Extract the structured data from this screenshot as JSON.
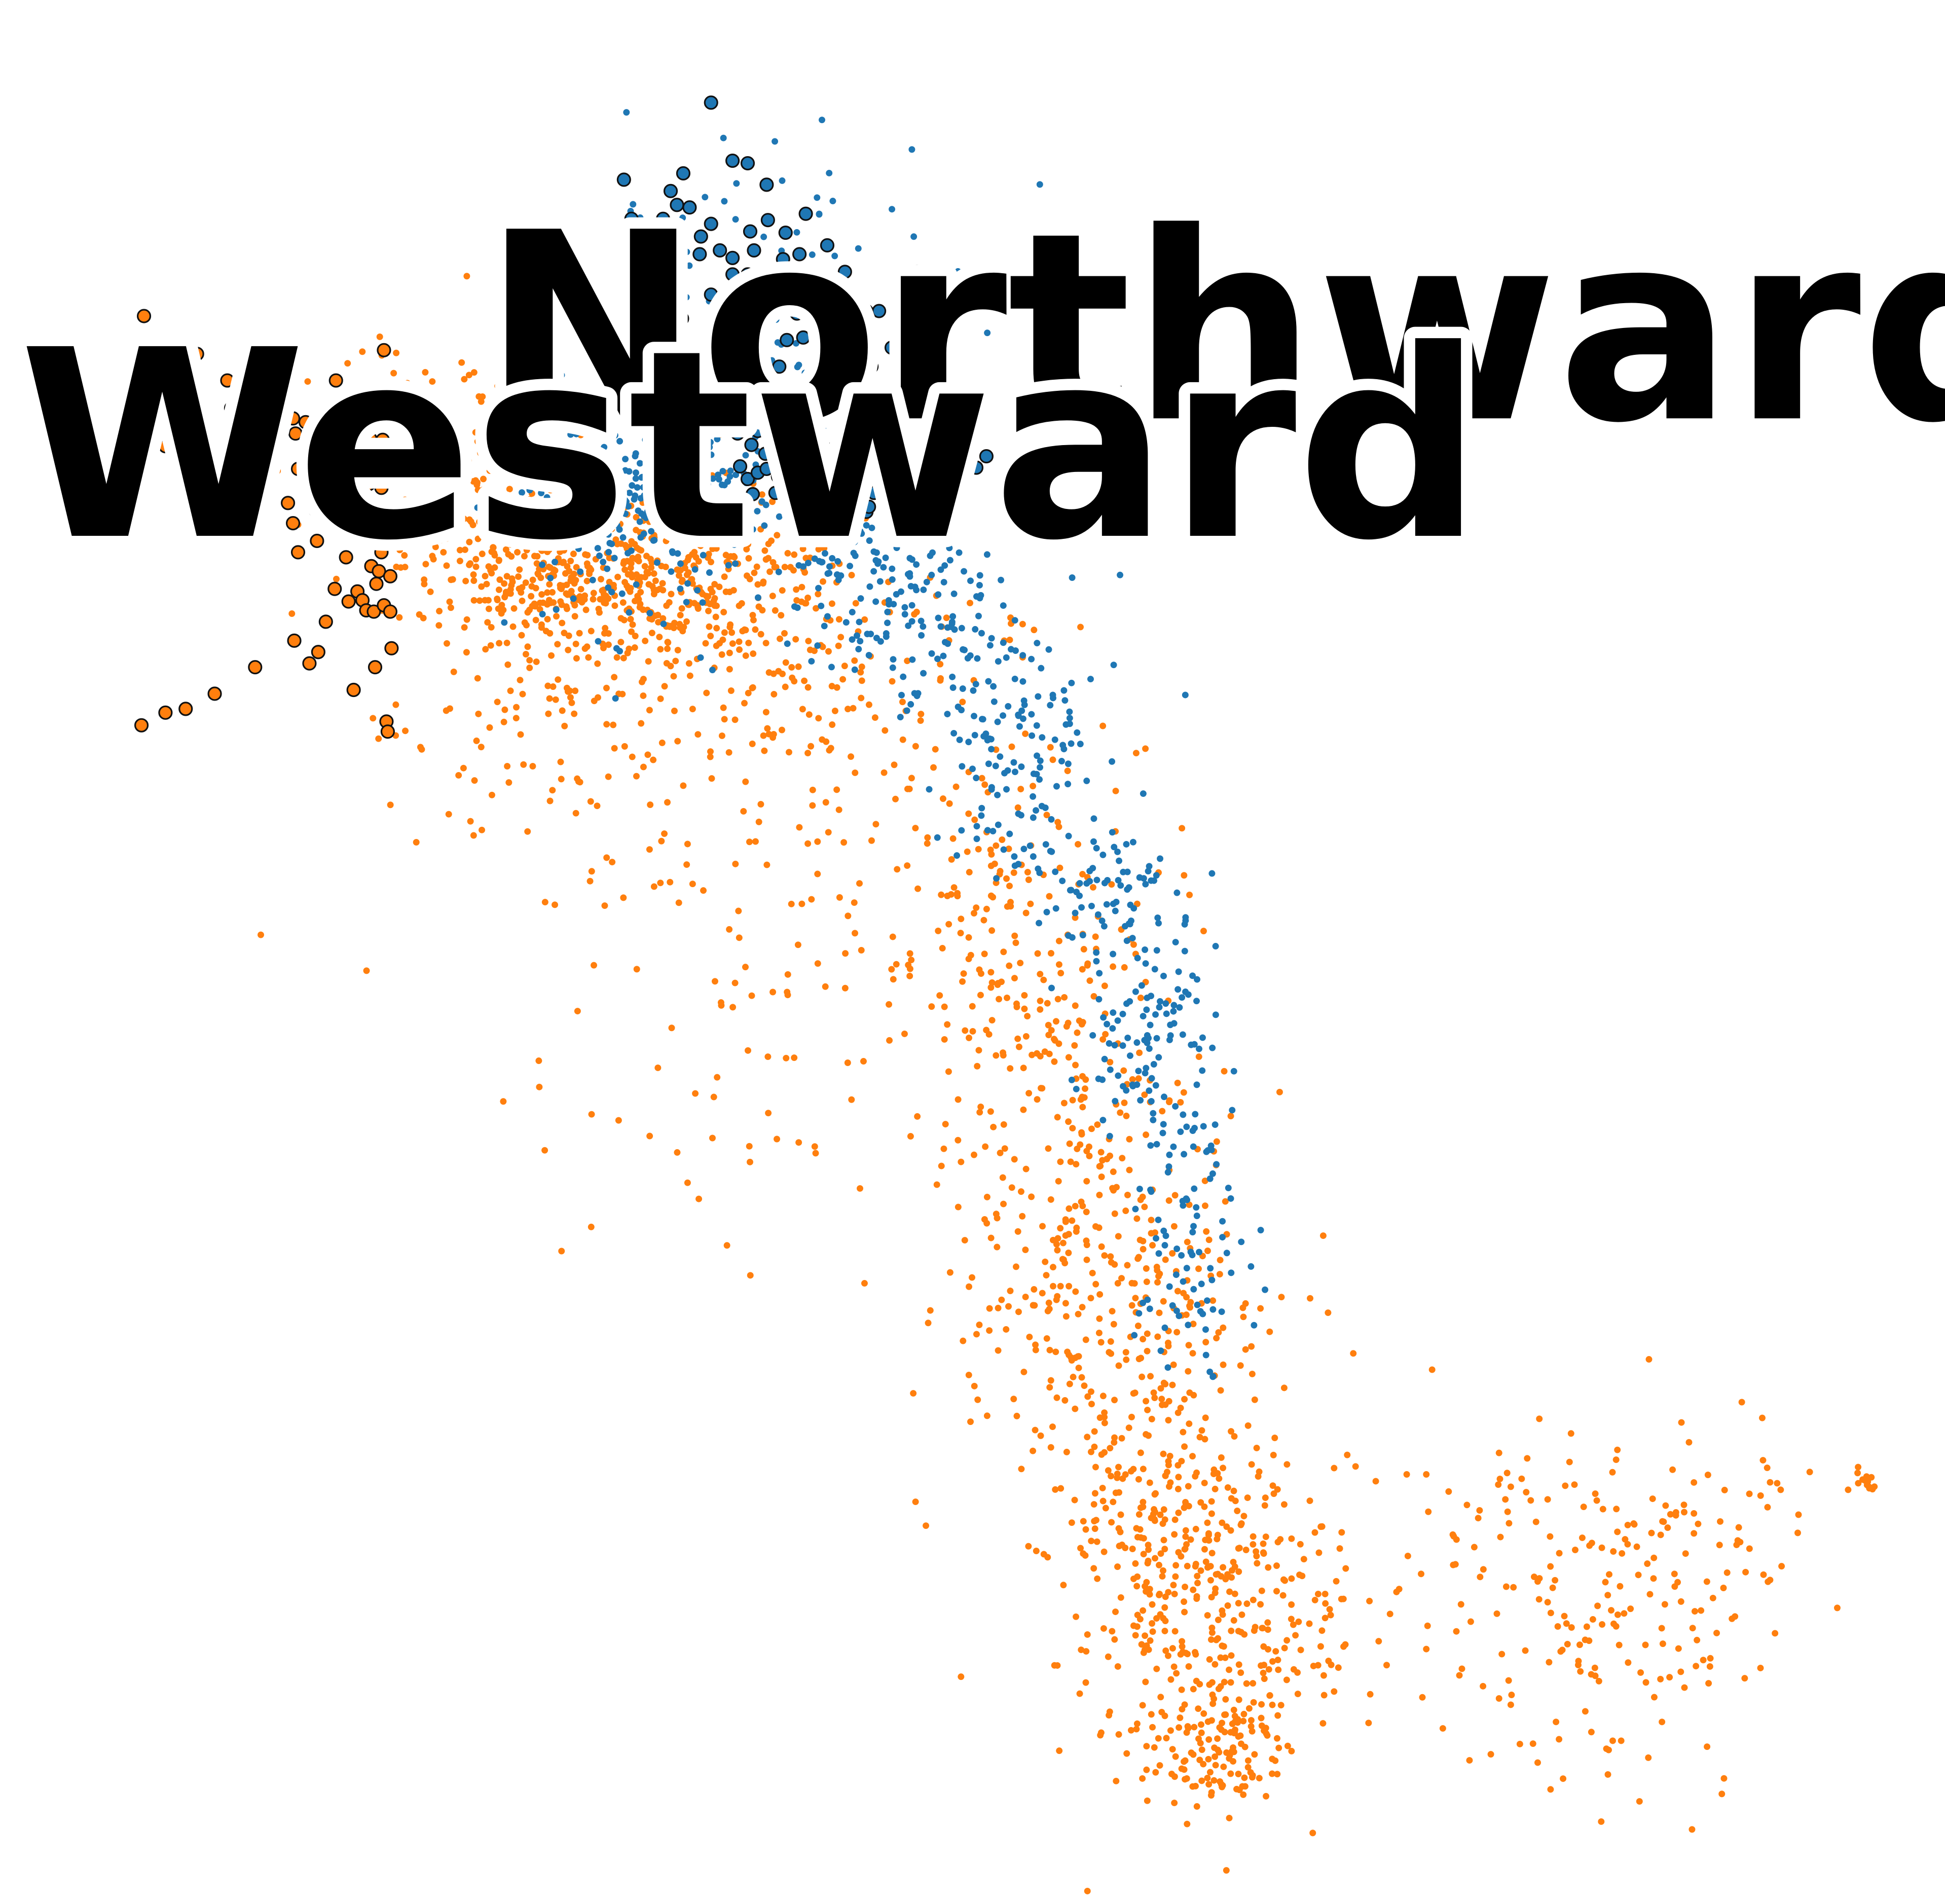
{
  "chart_data": {
    "type": "scatter",
    "title": "",
    "xlabel": "",
    "ylabel": "",
    "axes_visible": false,
    "grid": false,
    "legend": "none",
    "xlim": [
      0,
      1540
    ],
    "ylim": [
      0,
      1505
    ],
    "y_direction": "down",
    "labels": [
      {
        "text": "Northward",
        "color": "#000000",
        "series": "Northward"
      },
      {
        "text": "Westward",
        "color": "#000000",
        "series": "Westward"
      }
    ],
    "series": [
      {
        "name": "Northward",
        "color": "#1f77b4",
        "clouds": [
          {
            "cx": 510,
            "cy": 370,
            "sx": 55,
            "sy": 55,
            "n": 320
          },
          {
            "cx": 600,
            "cy": 300,
            "sx": 70,
            "sy": 90,
            "n": 160
          },
          {
            "cx": 680,
            "cy": 450,
            "sx": 35,
            "sy": 30,
            "n": 70
          },
          {
            "cx": 740,
            "cy": 490,
            "sx": 40,
            "sy": 45,
            "n": 110
          },
          {
            "cx": 810,
            "cy": 590,
            "sx": 30,
            "sy": 45,
            "n": 100
          },
          {
            "cx": 870,
            "cy": 700,
            "sx": 35,
            "sy": 40,
            "n": 90
          },
          {
            "cx": 905,
            "cy": 800,
            "sx": 25,
            "sy": 45,
            "n": 70
          },
          {
            "cx": 930,
            "cy": 880,
            "sx": 25,
            "sy": 45,
            "n": 60
          },
          {
            "cx": 945,
            "cy": 1000,
            "sx": 22,
            "sy": 40,
            "n": 60
          }
        ],
        "highlighted": [
          [
            563,
            80
          ],
          [
            580,
            126
          ],
          [
            592,
            128
          ],
          [
            607,
            145
          ],
          [
            494,
            141
          ],
          [
            541,
            136
          ],
          [
            531,
            150
          ],
          [
            536,
            161
          ],
          [
            546,
            163
          ],
          [
            500,
            172
          ],
          [
            525,
            172
          ],
          [
            563,
            176
          ],
          [
            594,
            182
          ],
          [
            608,
            173
          ],
          [
            622,
            183
          ],
          [
            638,
            168
          ],
          [
            555,
            186
          ],
          [
            570,
            197
          ],
          [
            580,
            203
          ],
          [
            597,
            197
          ],
          [
            620,
            204
          ],
          [
            633,
            200
          ],
          [
            655,
            193
          ],
          [
            528,
            206
          ],
          [
            554,
            200
          ],
          [
            580,
            216
          ],
          [
            592,
            216
          ],
          [
            608,
            218
          ],
          [
            622,
            213
          ],
          [
            635,
            218
          ],
          [
            669,
            214
          ],
          [
            726,
            214
          ],
          [
            510,
            221
          ],
          [
            563,
            232
          ],
          [
            584,
            235
          ],
          [
            600,
            231
          ],
          [
            614,
            241
          ],
          [
            640,
            233
          ],
          [
            650,
            228
          ],
          [
            671,
            241
          ],
          [
            519,
            242
          ],
          [
            540,
            251
          ],
          [
            566,
            262
          ],
          [
            576,
            269
          ],
          [
            606,
            257
          ],
          [
            631,
            247
          ],
          [
            640,
            248
          ],
          [
            657,
            260
          ],
          [
            686,
            245
          ],
          [
            696,
            245
          ],
          [
            714,
            262
          ],
          [
            532,
            276
          ],
          [
            550,
            289
          ],
          [
            568,
            284
          ],
          [
            586,
            291
          ],
          [
            623,
            268
          ],
          [
            636,
            266
          ],
          [
            660,
            268
          ],
          [
            706,
            274
          ],
          [
            544,
            303
          ],
          [
            567,
            297
          ],
          [
            600,
            304
          ],
          [
            617,
            289
          ],
          [
            640,
            300
          ],
          [
            668,
            299
          ],
          [
            690,
            289
          ],
          [
            714,
            291
          ],
          [
            559,
            313
          ],
          [
            590,
            319
          ],
          [
            608,
            313
          ],
          [
            634,
            327
          ],
          [
            657,
            313
          ],
          [
            680,
            322
          ],
          [
            704,
            313
          ],
          [
            577,
            334
          ],
          [
            584,
            342
          ],
          [
            595,
            351
          ],
          [
            600,
            340
          ],
          [
            606,
            358
          ],
          [
            615,
            355
          ],
          [
            624,
            362
          ],
          [
            637,
            341
          ],
          [
            644,
            349
          ],
          [
            650,
            357
          ],
          [
            660,
            354
          ],
          [
            675,
            346
          ],
          [
            706,
            341
          ],
          [
            718,
            353
          ],
          [
            733,
            358
          ],
          [
            740,
            358
          ],
          [
            773,
            369
          ],
          [
            781,
            360
          ],
          [
            586,
            368
          ],
          [
            592,
            378
          ],
          [
            600,
            373
          ],
          [
            607,
            370
          ],
          [
            616,
            376
          ],
          [
            625,
            365
          ],
          [
            633,
            378
          ],
          [
            641,
            383
          ],
          [
            651,
            371
          ],
          [
            656,
            382
          ],
          [
            667,
            374
          ],
          [
            675,
            368
          ],
          [
            683,
            379
          ],
          [
            692,
            389
          ],
          [
            718,
            384
          ],
          [
            596,
            390
          ],
          [
            614,
            389
          ],
          [
            629,
            394
          ],
          [
            637,
            399
          ],
          [
            644,
            407
          ],
          [
            651,
            403
          ],
          [
            659,
            402
          ],
          [
            668,
            408
          ],
          [
            676,
            403
          ],
          [
            686,
            404
          ],
          [
            688,
            400
          ],
          [
            652,
            388
          ],
          [
            637,
            374
          ]
        ]
      },
      {
        "name": "Westward",
        "color": "#ff7f0e",
        "clouds": [
          {
            "cx": 440,
            "cy": 450,
            "sx": 60,
            "sy": 30,
            "n": 380
          },
          {
            "cx": 560,
            "cy": 460,
            "sx": 60,
            "sy": 35,
            "n": 250
          },
          {
            "cx": 380,
            "cy": 360,
            "sx": 55,
            "sy": 50,
            "n": 120
          },
          {
            "cx": 430,
            "cy": 560,
            "sx": 60,
            "sy": 55,
            "n": 120
          },
          {
            "cx": 650,
            "cy": 540,
            "sx": 70,
            "sy": 50,
            "n": 110
          },
          {
            "cx": 620,
            "cy": 720,
            "sx": 110,
            "sy": 120,
            "n": 150
          },
          {
            "cx": 800,
            "cy": 720,
            "sx": 50,
            "sy": 90,
            "n": 160
          },
          {
            "cx": 850,
            "cy": 900,
            "sx": 55,
            "sy": 90,
            "n": 210
          },
          {
            "cx": 880,
            "cy": 1060,
            "sx": 60,
            "sy": 80,
            "n": 240
          },
          {
            "cx": 930,
            "cy": 1200,
            "sx": 50,
            "sy": 60,
            "n": 200
          },
          {
            "cx": 960,
            "cy": 1300,
            "sx": 50,
            "sy": 55,
            "n": 260
          },
          {
            "cx": 960,
            "cy": 1390,
            "sx": 30,
            "sy": 25,
            "n": 100
          },
          {
            "cx": 1180,
            "cy": 1240,
            "sx": 90,
            "sy": 70,
            "n": 110
          },
          {
            "cx": 1300,
            "cy": 1290,
            "sx": 60,
            "sy": 70,
            "n": 120
          },
          {
            "cx": 1360,
            "cy": 1200,
            "sx": 30,
            "sy": 30,
            "n": 30
          },
          {
            "cx": 1478,
            "cy": 1173,
            "sx": 5,
            "sy": 6,
            "n": 15
          }
        ],
        "highlighted": [
          [
            114,
            249
          ],
          [
            156,
            279
          ],
          [
            122,
            307
          ],
          [
            104,
            316
          ],
          [
            151,
            318
          ],
          [
            180,
            300
          ],
          [
            192,
            304
          ],
          [
            213,
            303
          ],
          [
            217,
            301
          ],
          [
            189,
            312
          ],
          [
            266,
            300
          ],
          [
            282,
            313
          ],
          [
            297,
            318
          ],
          [
            304,
            276
          ],
          [
            183,
            322
          ],
          [
            205,
            337
          ],
          [
            224,
            322
          ],
          [
            232,
            330
          ],
          [
            242,
            333
          ],
          [
            252,
            332
          ],
          [
            131,
            352
          ],
          [
            153,
            349
          ],
          [
            187,
            353
          ],
          [
            209,
            351
          ],
          [
            234,
            342
          ],
          [
            245,
            344
          ],
          [
            257,
            347
          ],
          [
            266,
            344
          ],
          [
            275,
            341
          ],
          [
            284,
            346
          ],
          [
            293,
            346
          ],
          [
            303,
            347
          ],
          [
            174,
            361
          ],
          [
            207,
            365
          ],
          [
            236,
            370
          ],
          [
            268,
            355
          ],
          [
            283,
            362
          ],
          [
            297,
            363
          ],
          [
            165,
            376
          ],
          [
            196,
            378
          ],
          [
            246,
            381
          ],
          [
            267,
            382
          ],
          [
            292,
            382
          ],
          [
            302,
            385
          ],
          [
            210,
            392
          ],
          [
            228,
            397
          ],
          [
            250,
            403
          ],
          [
            270,
            398
          ],
          [
            290,
            398
          ],
          [
            307,
            402
          ],
          [
            190,
            408
          ],
          [
            232,
            413
          ],
          [
            275,
            416
          ],
          [
            297,
            413
          ],
          [
            306,
            418
          ],
          [
            251,
            427
          ],
          [
            236,
            436
          ],
          [
            274,
            440
          ],
          [
            302,
            436
          ],
          [
            294,
            447
          ],
          [
            300,
            451
          ],
          [
            309,
            455
          ],
          [
            298,
            461
          ],
          [
            283,
            467
          ],
          [
            265,
            465
          ],
          [
            287,
            474
          ],
          [
            290,
            482
          ],
          [
            296,
            483
          ],
          [
            304,
            478
          ],
          [
            309,
            483
          ],
          [
            276,
            475
          ],
          [
            258,
            491
          ],
          [
            310,
            512
          ],
          [
            233,
            506
          ],
          [
            202,
            527
          ],
          [
            245,
            524
          ],
          [
            252,
            515
          ],
          [
            297,
            527
          ],
          [
            280,
            545
          ],
          [
            170,
            548
          ],
          [
            147,
            560
          ],
          [
            131,
            563
          ],
          [
            112,
            573
          ],
          [
            306,
            570
          ],
          [
            307,
            578
          ]
        ]
      }
    ]
  }
}
